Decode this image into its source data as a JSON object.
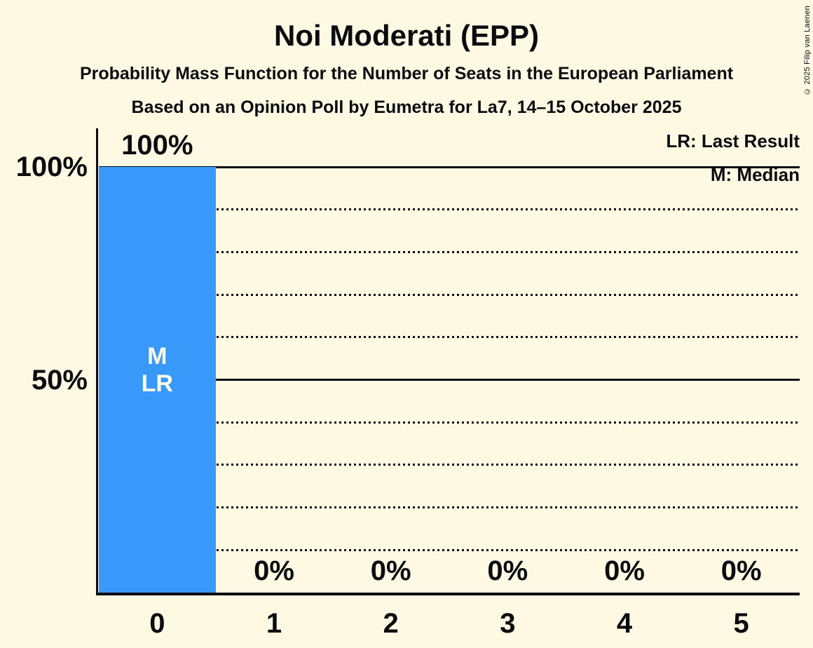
{
  "title": "Noi Moderati (EPP)",
  "subtitle1": "Probability Mass Function for the Number of Seats in the European Parliament",
  "subtitle2": "Based on an Opinion Poll by Eumetra for La7, 14–15 October 2025",
  "copyright": "© 2025 Filip van Laenen",
  "legend": {
    "lr": "LR: Last Result",
    "m": "M: Median"
  },
  "colors": {
    "background": "#FDF9E3",
    "bar": "#3899FB",
    "text": "#0B0B10",
    "bar_label": "#FDF9E3"
  },
  "chart_data": {
    "type": "bar",
    "title": "Noi Moderati (EPP)",
    "categories": [
      "0",
      "1",
      "2",
      "3",
      "4",
      "5"
    ],
    "values": [
      100,
      0,
      0,
      0,
      0,
      0
    ],
    "bar_value_labels": [
      "100%",
      "0%",
      "0%",
      "0%",
      "0%",
      "0%"
    ],
    "bar_annotations": [
      [
        "M",
        "LR"
      ],
      [],
      [],
      [],
      [],
      []
    ],
    "y_ticks": [
      {
        "value": 100,
        "label": "100%"
      },
      {
        "value": 50,
        "label": "50%"
      }
    ],
    "solid_levels": [
      100,
      50
    ],
    "dotted_levels": [
      90,
      80,
      70,
      60,
      40,
      30,
      20,
      10
    ],
    "ylim": [
      0,
      100
    ],
    "grid": "horizontal dotted, solid at 50% and 100%",
    "legend_position": "top-right",
    "annotation_meaning": {
      "LR": "Last Result",
      "M": "Median"
    }
  }
}
